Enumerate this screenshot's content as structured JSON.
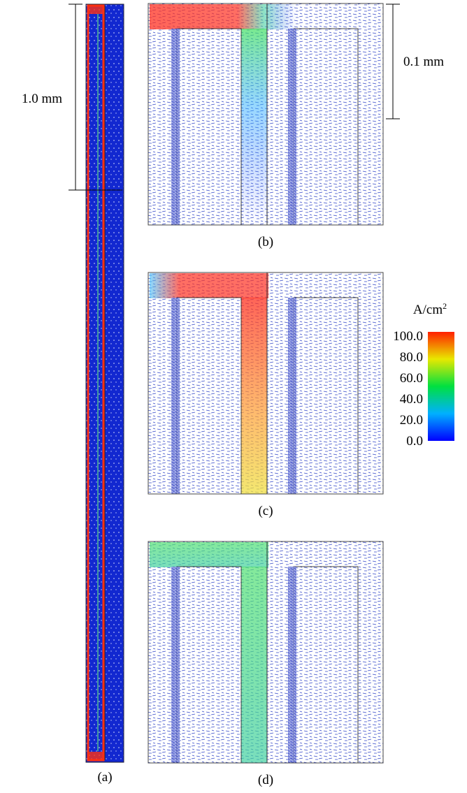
{
  "panels": {
    "a": {
      "label": "(a)",
      "scale_bar": "1.0 mm"
    },
    "b": {
      "label": "(b)",
      "scale_bar": "0.1 mm"
    },
    "c": {
      "label": "(c)"
    },
    "d": {
      "label": "(d)"
    }
  },
  "colorbar": {
    "unit": "A/cm",
    "unit_superscript": "2",
    "ticks": [
      "100.0",
      "80.0",
      "60.0",
      "40.0",
      "20.0",
      "0.0"
    ]
  }
}
